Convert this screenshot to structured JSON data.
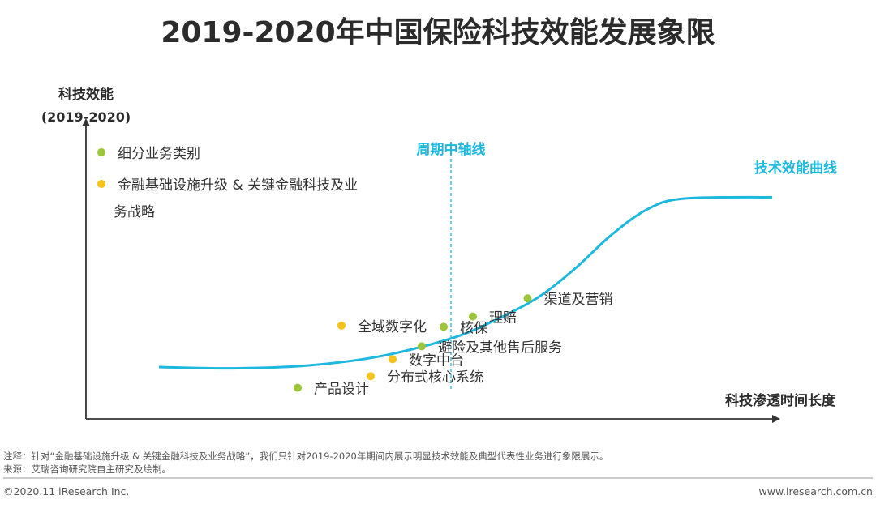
{
  "chart_data": {
    "type": "scatter",
    "title": "2019-2020年中国保险科技效能发展象限",
    "ylabel": "科技效能",
    "ylabel_sub": "(2019-2020)",
    "xlabel": "科技渗透时间长度",
    "x_range": [
      0,
      100
    ],
    "y_range": [
      0,
      100
    ],
    "midline": {
      "label": "周期中轴线",
      "x": 50
    },
    "curve": {
      "label": "技术效能曲线",
      "points": [
        [
          10,
          20
        ],
        [
          20,
          19.5
        ],
        [
          30,
          20.5
        ],
        [
          40,
          24
        ],
        [
          50,
          31
        ],
        [
          56,
          38
        ],
        [
          62,
          47
        ],
        [
          67,
          58
        ],
        [
          72,
          71
        ],
        [
          77,
          81
        ],
        [
          82,
          85
        ],
        [
          94,
          85.5
        ]
      ]
    },
    "legend": [
      {
        "label": "细分业务类别",
        "color": "#9cc53a"
      },
      {
        "label_lines": [
          "金融基础设施升级 & 关键金融科技及业",
          "务战略"
        ],
        "color": "#f7c21b"
      }
    ],
    "points": [
      {
        "label": "渠道及营销",
        "x": 60.5,
        "y": 46.5,
        "category": "green"
      },
      {
        "label": "理赔",
        "x": 53,
        "y": 39.5,
        "category": "green"
      },
      {
        "label": "核保",
        "x": 49,
        "y": 35.5,
        "category": "green"
      },
      {
        "label": "避险及其他售后服务",
        "x": 46,
        "y": 28,
        "category": "green"
      },
      {
        "label": "产品设计",
        "x": 29,
        "y": 12,
        "category": "green"
      },
      {
        "label": "全域数字化",
        "x": 35,
        "y": 36,
        "category": "yellow"
      },
      {
        "label": "数字中台",
        "x": 42,
        "y": 23,
        "category": "yellow"
      },
      {
        "label": "分布式核心系统",
        "x": 39,
        "y": 16.5,
        "category": "yellow"
      }
    ],
    "colors": {
      "green": "#9cc53a",
      "yellow": "#f7c21b",
      "curve": "#1cb8df",
      "axis": "#333333"
    }
  },
  "footer": {
    "note": "注释：针对“金融基础设施升级 & 关键金融科技及业务战略”，我们只针对2019-2020年期间内展示明显技术效能及典型代表性业务进行象限展示。",
    "source": "来源：艾瑞咨询研究院自主研究及绘制。",
    "copyright": "©2020.11 iResearch Inc.",
    "website": "www.iresearch.com.cn"
  }
}
